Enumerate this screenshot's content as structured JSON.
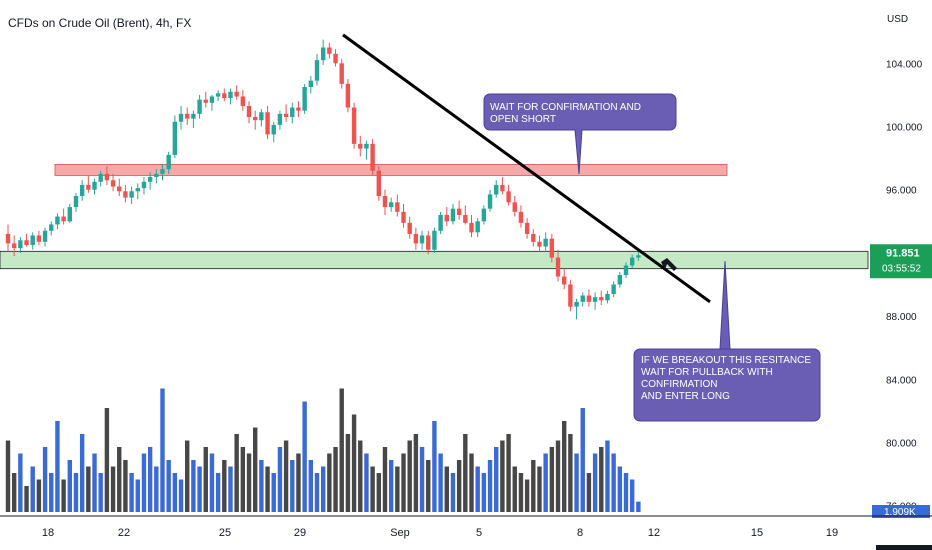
{
  "chart_data": {
    "type": "candlestick",
    "title": "CFDs on Crude Oil (Brent), 4h, FX",
    "currency_label": "USD",
    "y_ticks": [
      "104.000",
      "100.000",
      "96.000",
      "88.000",
      "84.000",
      "80.000",
      "76.000"
    ],
    "y_tick_values": [
      104,
      100,
      96,
      88,
      84,
      80,
      76
    ],
    "x_ticks": [
      "18",
      "22",
      "25",
      "29",
      "Sep",
      "5",
      "8",
      "12",
      "15",
      "19"
    ],
    "ylim": [
      75.6,
      107.5
    ],
    "price_label": "91.851",
    "countdown_label": "03:55:52",
    "volume_label": "1.909K",
    "resistance_zone": [
      96.9,
      97.6
    ],
    "support_zone": [
      91.0,
      92.1
    ],
    "trendline": [
      [
        0,
        105.8
      ],
      [
        1,
        88.9
      ]
    ],
    "annotations": [
      "WAIT FOR CONFIRMATION AND OPEN SHORT",
      "IF WE BREAKOUT THIS RESITANCE",
      "WAIT FOR PULLBACK WITH CONFIRMATION",
      "AND ENTER LONG"
    ],
    "candles": [
      [
        93.2,
        93.8,
        92.1,
        92.6
      ],
      [
        92.6,
        93.1,
        91.8,
        92.3
      ],
      [
        92.3,
        93.0,
        92.0,
        92.8
      ],
      [
        92.8,
        93.2,
        92.4,
        92.5
      ],
      [
        92.5,
        93.3,
        92.2,
        93.1
      ],
      [
        93.1,
        93.4,
        92.5,
        92.7
      ],
      [
        92.7,
        93.6,
        92.4,
        93.4
      ],
      [
        93.4,
        94.0,
        93.1,
        93.8
      ],
      [
        93.8,
        94.5,
        93.5,
        94.3
      ],
      [
        94.3,
        94.8,
        93.8,
        94.0
      ],
      [
        94.0,
        95.1,
        93.9,
        94.9
      ],
      [
        94.9,
        95.8,
        94.6,
        95.6
      ],
      [
        95.6,
        96.6,
        95.3,
        96.3
      ],
      [
        96.3,
        96.9,
        95.8,
        96.0
      ],
      [
        96.0,
        96.7,
        95.7,
        96.5
      ],
      [
        96.5,
        97.2,
        96.2,
        97.0
      ],
      [
        97.0,
        97.5,
        96.3,
        96.6
      ],
      [
        96.6,
        97.0,
        95.9,
        96.2
      ],
      [
        96.2,
        96.7,
        95.6,
        95.9
      ],
      [
        95.9,
        96.3,
        95.2,
        95.5
      ],
      [
        95.5,
        96.2,
        95.1,
        95.9
      ],
      [
        95.9,
        96.4,
        95.4,
        96.1
      ],
      [
        96.1,
        96.8,
        95.7,
        96.5
      ],
      [
        96.5,
        97.1,
        96.0,
        96.8
      ],
      [
        96.8,
        97.3,
        96.4,
        97.0
      ],
      [
        97.0,
        97.6,
        96.6,
        97.3
      ],
      [
        97.3,
        98.4,
        97.0,
        98.2
      ],
      [
        98.2,
        100.7,
        98.0,
        100.3
      ],
      [
        100.3,
        101.3,
        99.8,
        100.8
      ],
      [
        100.8,
        101.2,
        100.1,
        100.5
      ],
      [
        100.5,
        101.0,
        99.9,
        100.8
      ],
      [
        100.8,
        102.0,
        100.5,
        101.7
      ],
      [
        101.7,
        102.2,
        101.2,
        101.5
      ],
      [
        101.5,
        102.0,
        101.0,
        101.9
      ],
      [
        101.9,
        102.3,
        101.6,
        102.1
      ],
      [
        102.1,
        102.4,
        101.6,
        101.8
      ],
      [
        101.8,
        102.4,
        101.4,
        102.2
      ],
      [
        102.2,
        102.6,
        101.7,
        101.9
      ],
      [
        101.9,
        102.3,
        101.0,
        101.3
      ],
      [
        101.3,
        101.6,
        100.2,
        100.6
      ],
      [
        100.6,
        101.0,
        99.8,
        100.4
      ],
      [
        100.4,
        101.1,
        100.0,
        100.9
      ],
      [
        100.9,
        101.3,
        99.2,
        99.5
      ],
      [
        99.5,
        100.3,
        99.0,
        100.1
      ],
      [
        100.1,
        101.0,
        99.8,
        100.8
      ],
      [
        100.8,
        101.4,
        100.3,
        100.6
      ],
      [
        100.6,
        101.5,
        100.2,
        101.2
      ],
      [
        101.2,
        101.6,
        100.6,
        101.0
      ],
      [
        101.0,
        102.7,
        100.8,
        102.5
      ],
      [
        102.5,
        103.2,
        102.1,
        102.9
      ],
      [
        102.9,
        104.6,
        102.6,
        104.2
      ],
      [
        104.2,
        105.5,
        103.9,
        105.0
      ],
      [
        105.0,
        105.3,
        104.3,
        104.6
      ],
      [
        104.6,
        104.9,
        103.8,
        104.0
      ],
      [
        104.0,
        104.3,
        102.4,
        102.7
      ],
      [
        102.7,
        103.0,
        100.9,
        101.2
      ],
      [
        101.2,
        101.5,
        98.6,
        98.9
      ],
      [
        98.9,
        99.4,
        98.1,
        98.6
      ],
      [
        98.6,
        99.1,
        97.9,
        98.9
      ],
      [
        98.9,
        99.2,
        96.9,
        97.2
      ],
      [
        97.2,
        97.5,
        95.3,
        95.6
      ],
      [
        95.6,
        96.0,
        94.4,
        94.9
      ],
      [
        94.9,
        95.5,
        94.6,
        95.2
      ],
      [
        95.2,
        95.7,
        94.3,
        94.6
      ],
      [
        94.6,
        95.1,
        93.6,
        93.9
      ],
      [
        93.9,
        94.3,
        92.9,
        93.2
      ],
      [
        93.2,
        93.6,
        92.2,
        92.6
      ],
      [
        92.6,
        93.4,
        92.2,
        93.1
      ],
      [
        93.1,
        93.4,
        91.9,
        92.2
      ],
      [
        92.2,
        93.6,
        92.0,
        93.4
      ],
      [
        93.4,
        94.6,
        93.2,
        94.4
      ],
      [
        94.4,
        94.9,
        93.7,
        94.0
      ],
      [
        94.0,
        95.1,
        93.8,
        94.8
      ],
      [
        94.8,
        95.3,
        94.1,
        94.4
      ],
      [
        94.4,
        95.0,
        93.8,
        93.9
      ],
      [
        93.9,
        94.4,
        93.0,
        93.3
      ],
      [
        93.3,
        94.2,
        93.0,
        94.0
      ],
      [
        94.0,
        95.0,
        93.8,
        94.8
      ],
      [
        94.8,
        96.0,
        94.6,
        95.7
      ],
      [
        95.7,
        96.6,
        95.5,
        96.3
      ],
      [
        96.3,
        96.8,
        95.7,
        95.9
      ],
      [
        95.9,
        96.3,
        95.0,
        95.2
      ],
      [
        95.2,
        95.6,
        94.3,
        94.6
      ],
      [
        94.6,
        95.0,
        93.6,
        93.9
      ],
      [
        93.9,
        94.2,
        92.9,
        93.2
      ],
      [
        93.2,
        93.5,
        92.4,
        92.7
      ],
      [
        92.7,
        93.1,
        92.1,
        92.4
      ],
      [
        92.4,
        93.3,
        92.1,
        92.9
      ],
      [
        92.9,
        93.2,
        91.4,
        91.7
      ],
      [
        91.7,
        92.2,
        90.2,
        90.5
      ],
      [
        90.5,
        91.0,
        89.7,
        90.0
      ],
      [
        90.0,
        90.3,
        88.3,
        88.6
      ],
      [
        88.6,
        89.1,
        87.8,
        88.9
      ],
      [
        88.9,
        89.5,
        88.6,
        89.3
      ],
      [
        89.3,
        89.7,
        88.6,
        88.9
      ],
      [
        88.9,
        89.5,
        88.4,
        89.2
      ],
      [
        89.2,
        89.6,
        88.7,
        89.0
      ],
      [
        89.0,
        89.6,
        88.8,
        89.4
      ],
      [
        89.4,
        90.2,
        89.2,
        90.0
      ],
      [
        90.0,
        90.8,
        89.8,
        90.6
      ],
      [
        90.6,
        91.4,
        90.4,
        91.2
      ],
      [
        91.2,
        91.9,
        91.0,
        91.7
      ],
      [
        91.7,
        92.1,
        91.5,
        91.85
      ]
    ],
    "volume": [
      0.55,
      0.3,
      0.45,
      0.2,
      0.35,
      0.25,
      0.5,
      0.3,
      0.7,
      0.25,
      0.4,
      0.3,
      0.6,
      0.35,
      0.45,
      0.3,
      0.8,
      0.35,
      0.5,
      0.4,
      0.3,
      0.25,
      0.45,
      0.5,
      0.35,
      0.95,
      0.4,
      0.3,
      0.25,
      0.55,
      0.4,
      0.35,
      0.5,
      0.45,
      0.3,
      0.4,
      0.35,
      0.6,
      0.5,
      0.45,
      0.65,
      0.4,
      0.35,
      0.3,
      0.5,
      0.55,
      0.4,
      0.45,
      0.85,
      0.4,
      0.3,
      0.35,
      0.45,
      0.5,
      0.95,
      0.6,
      0.75,
      0.55,
      0.45,
      0.35,
      0.3,
      0.5,
      0.4,
      0.35,
      0.45,
      0.55,
      0.6,
      0.5,
      0.4,
      0.7,
      0.45,
      0.35,
      0.3,
      0.4,
      0.6,
      0.45,
      0.35,
      0.3,
      0.4,
      0.5,
      0.55,
      0.6,
      0.35,
      0.3,
      0.25,
      0.4,
      0.35,
      0.45,
      0.5,
      0.55,
      0.7,
      0.6,
      0.45,
      0.8,
      0.3,
      0.45,
      0.5,
      0.55,
      0.45,
      0.35,
      0.3,
      0.25,
      0.08
    ],
    "colors": {
      "up": "#26a69a",
      "down": "#ef5350",
      "vol_up": "#3a6ad6",
      "vol_down": "#474747",
      "resistance_fill": "#f5a9a9",
      "support_fill": "#c6e9c5",
      "callout": "#6a5db4",
      "price_badge": "#1b9e57",
      "axis_text": "#131722"
    },
    "grid": false
  }
}
